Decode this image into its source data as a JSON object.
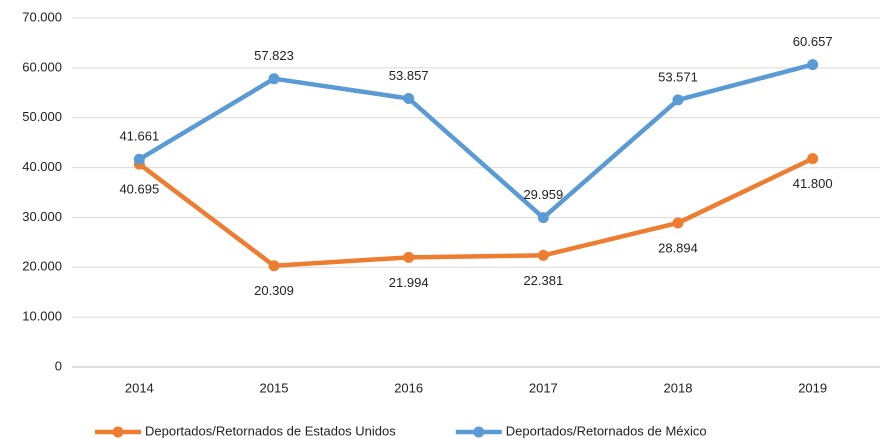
{
  "chart_data": {
    "type": "line",
    "categories": [
      "2014",
      "2015",
      "2016",
      "2017",
      "2018",
      "2019"
    ],
    "series": [
      {
        "name": "Deportados/Retornados de Estados Unidos",
        "color": "#ed7d31",
        "values": [
          40695,
          20309,
          21994,
          22381,
          28894,
          41800
        ],
        "value_labels": [
          "40.695",
          "20.309",
          "21.994",
          "22.381",
          "28.894",
          "41.800"
        ]
      },
      {
        "name": "Deportados/Retornados de México",
        "color": "#5b9bd5",
        "values": [
          41661,
          57823,
          53857,
          29959,
          53571,
          60657
        ],
        "value_labels": [
          "41.661",
          "57.823",
          "53.857",
          "29.959",
          "53.571",
          "60.657"
        ]
      }
    ],
    "ylim": [
      0,
      70000
    ],
    "yticks": [
      0,
      {
        "value": 10000,
        "label": "10.000"
      },
      {
        "value": 20000,
        "label": "20.000"
      },
      {
        "value": 30000,
        "label": "30.000"
      },
      {
        "value": 40000,
        "label": "40.000"
      },
      {
        "value": 50000,
        "label": "50.000"
      },
      {
        "value": 60000,
        "label": "60.000"
      },
      {
        "value": 70000,
        "label": "70.000"
      }
    ],
    "grid": true,
    "legend": "bottom"
  }
}
